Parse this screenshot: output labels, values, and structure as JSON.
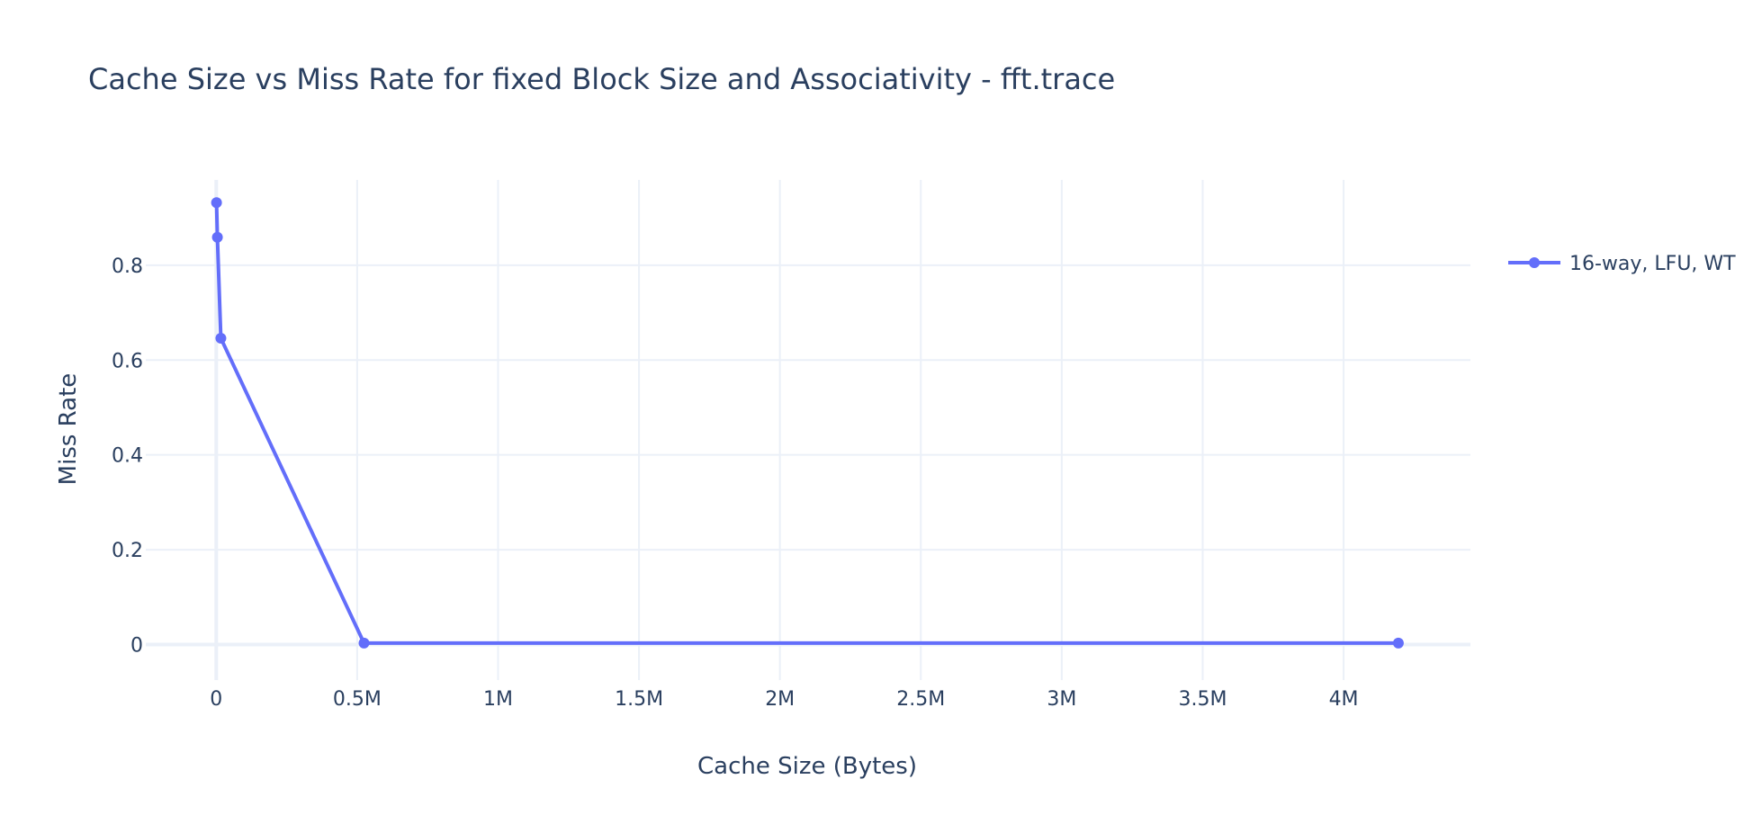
{
  "colors": {
    "series": "#636efa",
    "text": "#2a3f5f",
    "grid": "#ebf0f8",
    "background": "#ffffff"
  },
  "chart_data": {
    "type": "line",
    "title": "Cache Size vs Miss Rate for fixed Block Size and Associativity - fft.trace",
    "xlabel": "Cache Size (Bytes)",
    "ylabel": "Miss Rate",
    "xlim": [
      -250000,
      4450000
    ],
    "ylim": [
      -0.075,
      0.98
    ],
    "x_ticks": [
      0,
      500000,
      1000000,
      1500000,
      2000000,
      2500000,
      3000000,
      3500000,
      4000000
    ],
    "x_tick_labels": [
      "0",
      "0.5M",
      "1M",
      "1.5M",
      "2M",
      "2.5M",
      "3M",
      "3.5M",
      "4M"
    ],
    "y_ticks": [
      0,
      0.2,
      0.4,
      0.6,
      0.8
    ],
    "y_tick_labels": [
      "0",
      "0.2",
      "0.4",
      "0.6",
      "0.8"
    ],
    "grid": true,
    "legend_position": "top-right",
    "series": [
      {
        "name": "16-way, LFU, WT",
        "mode": "lines+markers",
        "x": [
          1024,
          4096,
          16384,
          524288,
          4194304
        ],
        "y": [
          0.932,
          0.859,
          0.646,
          0.003,
          0.003
        ]
      }
    ]
  }
}
